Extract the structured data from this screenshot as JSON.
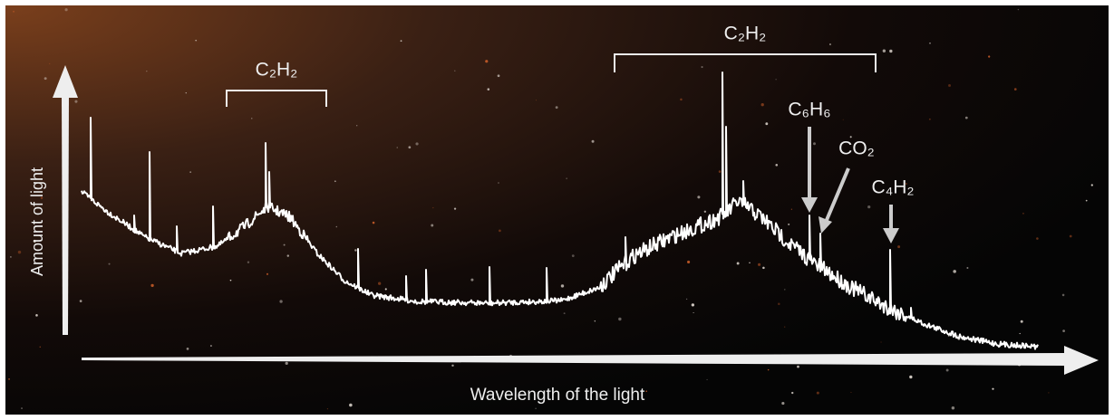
{
  "axes": {
    "y_label": "Amount of light",
    "x_label": "Wavelength of the light"
  },
  "annotations": [
    {
      "label": "C₂H₂"
    },
    {
      "label": "C₂H₂"
    },
    {
      "label": "C₆H₆"
    },
    {
      "label": "CO₂"
    },
    {
      "label": "C₄H₂"
    }
  ]
}
